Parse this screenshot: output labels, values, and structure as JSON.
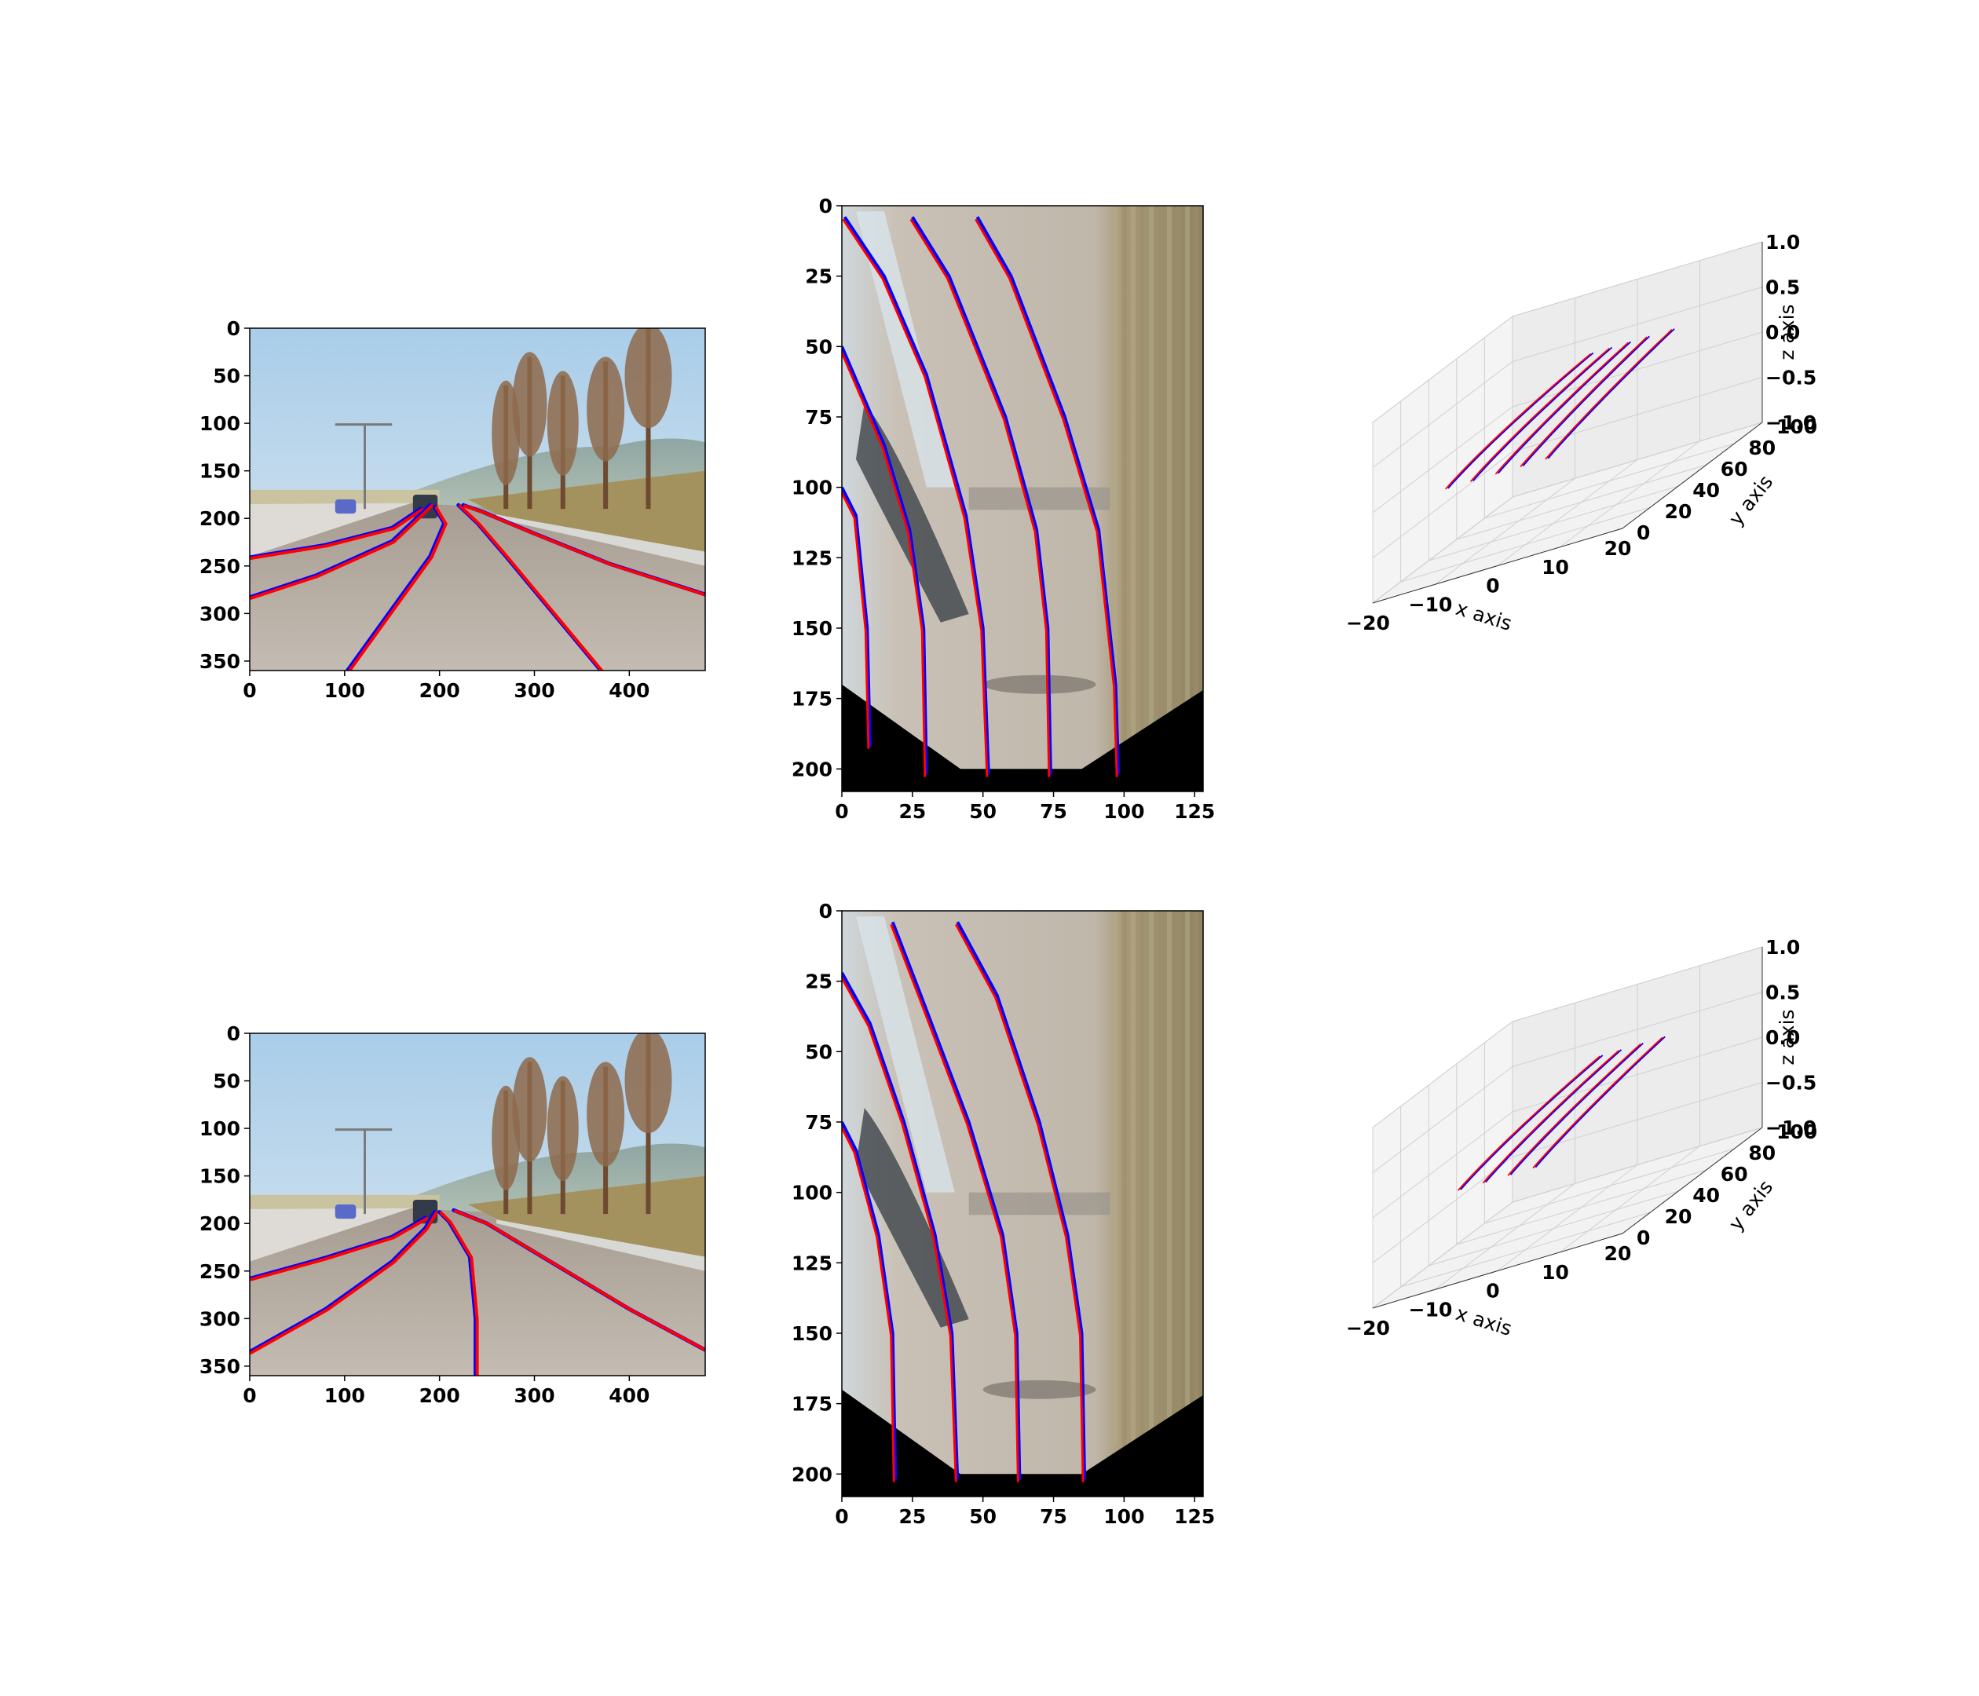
{
  "colors": {
    "gt_lane": "#0000ff",
    "pred_lane": "#ff0000",
    "sky": "#bcd8ec",
    "road": "#bcb3a8",
    "vegetation": "#a48f62",
    "pane": "#f2f2f2",
    "grid": "#d0d0d0"
  },
  "chart_data": [
    {
      "panel": "row1-camera",
      "type": "image-with-lanes",
      "x_ticks": [
        "0",
        "100",
        "200",
        "300",
        "400"
      ],
      "y_ticks": [
        "0",
        "50",
        "100",
        "150",
        "200",
        "250",
        "300",
        "350"
      ],
      "xlim": [
        0,
        480
      ],
      "ylim": [
        360,
        0
      ],
      "lanes": [
        [
          [
            0,
            241
          ],
          [
            80,
            228
          ],
          [
            150,
            210
          ],
          [
            180,
            190
          ]
        ],
        [
          [
            0,
            283
          ],
          [
            70,
            260
          ],
          [
            150,
            224
          ],
          [
            182,
            194
          ],
          [
            190,
            186
          ]
        ],
        [
          [
            103,
            360
          ],
          [
            150,
            295
          ],
          [
            190,
            240
          ],
          [
            205,
            205
          ],
          [
            195,
            188
          ]
        ],
        [
          [
            370,
            360
          ],
          [
            320,
            300
          ],
          [
            270,
            240
          ],
          [
            240,
            205
          ],
          [
            220,
            186
          ]
        ],
        [
          [
            480,
            280
          ],
          [
            380,
            248
          ],
          [
            300,
            216
          ],
          [
            245,
            193
          ],
          [
            225,
            186
          ]
        ]
      ]
    },
    {
      "panel": "row1-topview",
      "type": "image-with-lanes",
      "x_ticks": [
        "0",
        "25",
        "50",
        "75",
        "100",
        "125"
      ],
      "y_ticks": [
        "0",
        "25",
        "50",
        "75",
        "100",
        "125",
        "150",
        "175",
        "200"
      ],
      "xlim": [
        0,
        128
      ],
      "ylim": [
        208,
        0
      ],
      "lanes": [
        [
          [
            10,
            192
          ],
          [
            9,
            150
          ],
          [
            5,
            110
          ],
          [
            0,
            100
          ]
        ],
        [
          [
            30,
            202
          ],
          [
            29,
            150
          ],
          [
            24,
            115
          ],
          [
            15,
            85
          ],
          [
            0,
            50
          ]
        ],
        [
          [
            52,
            202
          ],
          [
            50,
            150
          ],
          [
            44,
            110
          ],
          [
            30,
            60
          ],
          [
            15,
            25
          ],
          [
            1,
            4
          ]
        ],
        [
          [
            74,
            202
          ],
          [
            73,
            150
          ],
          [
            69,
            115
          ],
          [
            58,
            75
          ],
          [
            38,
            25
          ],
          [
            25,
            4
          ]
        ],
        [
          [
            98,
            202
          ],
          [
            97,
            170
          ],
          [
            91,
            115
          ],
          [
            79,
            75
          ],
          [
            60,
            25
          ],
          [
            48,
            4
          ]
        ]
      ]
    },
    {
      "panel": "row1-3d",
      "type": "line3d",
      "x_ticks": [
        "−20",
        "−10",
        "0",
        "10",
        "20"
      ],
      "y_ticks": [
        "0",
        "20",
        "40",
        "60",
        "80",
        "100"
      ],
      "z_ticks": [
        "−1.0",
        "−0.5",
        "0.0",
        "0.5",
        "1.0"
      ],
      "xlabel": "x axis",
      "ylabel": "y axis",
      "zlabel": "z axis",
      "xlim": [
        -20,
        20
      ],
      "ylim": [
        0,
        100
      ],
      "zlim": [
        -1,
        1
      ],
      "lanes": [
        {
          "x0": -9.0,
          "x1": -3.0
        },
        {
          "x0": -5.0,
          "x1": 0.0
        },
        {
          "x0": -1.0,
          "x1": 3.0
        },
        {
          "x0": 3.0,
          "x1": 6.0
        },
        {
          "x0": 7.0,
          "x1": 10.0
        }
      ]
    },
    {
      "panel": "row2-camera",
      "type": "image-with-lanes",
      "x_ticks": [
        "0",
        "100",
        "200",
        "300",
        "400"
      ],
      "y_ticks": [
        "0",
        "50",
        "100",
        "150",
        "200",
        "250",
        "300",
        "350"
      ],
      "xlim": [
        0,
        480
      ],
      "ylim": [
        360,
        0
      ],
      "lanes": [
        [
          [
            0,
            258
          ],
          [
            80,
            236
          ],
          [
            150,
            214
          ],
          [
            185,
            194
          ]
        ],
        [
          [
            0,
            335
          ],
          [
            80,
            290
          ],
          [
            150,
            240
          ],
          [
            185,
            205
          ],
          [
            195,
            188
          ]
        ],
        [
          [
            238,
            360
          ],
          [
            238,
            300
          ],
          [
            232,
            235
          ],
          [
            210,
            198
          ],
          [
            200,
            188
          ]
        ],
        [
          [
            480,
            333
          ],
          [
            400,
            290
          ],
          [
            310,
            236
          ],
          [
            250,
            200
          ],
          [
            215,
            186
          ]
        ]
      ]
    },
    {
      "panel": "row2-topview",
      "type": "image-with-lanes",
      "x_ticks": [
        "0",
        "25",
        "50",
        "75",
        "100",
        "125"
      ],
      "y_ticks": [
        "0",
        "25",
        "50",
        "75",
        "100",
        "125",
        "150",
        "175",
        "200"
      ],
      "xlim": [
        0,
        128
      ],
      "ylim": [
        208,
        0
      ],
      "lanes": [
        [
          [
            19,
            202
          ],
          [
            18,
            150
          ],
          [
            13,
            115
          ],
          [
            5,
            85
          ],
          [
            0,
            75
          ]
        ],
        [
          [
            41,
            202
          ],
          [
            39,
            150
          ],
          [
            33,
            115
          ],
          [
            22,
            75
          ],
          [
            10,
            40
          ],
          [
            0,
            22
          ]
        ],
        [
          [
            63,
            202
          ],
          [
            62,
            150
          ],
          [
            57,
            115
          ],
          [
            45,
            75
          ],
          [
            28,
            30
          ],
          [
            18,
            4
          ]
        ],
        [
          [
            86,
            202
          ],
          [
            85,
            150
          ],
          [
            80,
            115
          ],
          [
            70,
            75
          ],
          [
            55,
            30
          ],
          [
            41,
            4
          ]
        ]
      ]
    },
    {
      "panel": "row2-3d",
      "type": "line3d",
      "x_ticks": [
        "−20",
        "−10",
        "0",
        "10",
        "20"
      ],
      "y_ticks": [
        "0",
        "20",
        "40",
        "60",
        "80",
        "100"
      ],
      "z_ticks": [
        "−1.0",
        "−0.5",
        "0.0",
        "0.5",
        "1.0"
      ],
      "xlabel": "x axis",
      "ylabel": "y axis",
      "zlabel": "z axis",
      "xlim": [
        -20,
        20
      ],
      "ylim": [
        0,
        100
      ],
      "zlim": [
        -1,
        1
      ],
      "lanes": [
        {
          "x0": -7.0,
          "x1": -1.5
        },
        {
          "x0": -3.0,
          "x1": 1.5
        },
        {
          "x0": 1.0,
          "x1": 5.0
        },
        {
          "x0": 5.0,
          "x1": 8.5
        }
      ]
    }
  ]
}
